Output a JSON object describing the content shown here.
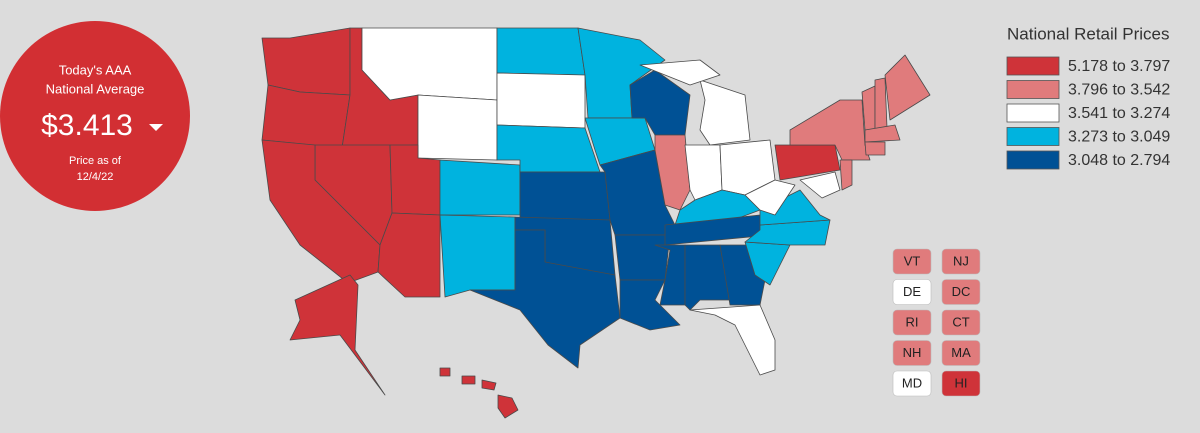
{
  "badge": {
    "line1": "Today's AAA",
    "line2": "National Average",
    "price": "$3.413",
    "as_of": "Price as of",
    "date": "12/4/22"
  },
  "legend": {
    "title": "National Retail Prices",
    "items": [
      {
        "label": "5.178 to 3.797",
        "color": "#cf3339"
      },
      {
        "label": "3.796 to 3.542",
        "color": "#e07b7c"
      },
      {
        "label": "3.541 to 3.274",
        "color": "#ffffff"
      },
      {
        "label": "3.273 to 3.049",
        "color": "#00b3df"
      },
      {
        "label": "3.048 to 2.794",
        "color": "#005195"
      }
    ]
  },
  "small_states": [
    {
      "label": "VT",
      "color": "#e07b7c"
    },
    {
      "label": "NJ",
      "color": "#e07b7c"
    },
    {
      "label": "DE",
      "color": "#ffffff"
    },
    {
      "label": "DC",
      "color": "#e07b7c"
    },
    {
      "label": "RI",
      "color": "#e07b7c"
    },
    {
      "label": "CT",
      "color": "#e07b7c"
    },
    {
      "label": "NH",
      "color": "#e07b7c"
    },
    {
      "label": "MA",
      "color": "#e07b7c"
    },
    {
      "label": "MD",
      "color": "#ffffff"
    },
    {
      "label": "HI",
      "color": "#cf3339"
    }
  ]
}
